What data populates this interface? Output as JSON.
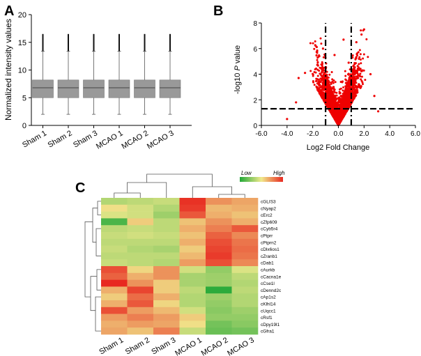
{
  "panels": {
    "a": "A",
    "b": "B",
    "c": "C"
  },
  "chart_data": [
    {
      "panel": "A",
      "type": "box",
      "ylabel": "Normalized intensity values",
      "ylim": [
        0,
        20
      ],
      "yticks": [
        "0",
        "5",
        "10",
        "15",
        "20"
      ],
      "categories": [
        "Sham 1",
        "Sham 2",
        "Sham 3",
        "MCAO 1",
        "MCAO 2",
        "MCAO 3"
      ],
      "boxes": [
        {
          "min": 2.0,
          "q1": 5.0,
          "median": 6.8,
          "q3": 8.2,
          "max": 13.4,
          "outlier_max": 16.5
        },
        {
          "min": 2.0,
          "q1": 5.0,
          "median": 6.8,
          "q3": 8.2,
          "max": 13.4,
          "outlier_max": 16.5
        },
        {
          "min": 2.0,
          "q1": 5.0,
          "median": 6.8,
          "q3": 8.2,
          "max": 13.4,
          "outlier_max": 16.5
        },
        {
          "min": 2.0,
          "q1": 5.0,
          "median": 6.8,
          "q3": 8.2,
          "max": 13.4,
          "outlier_max": 16.5
        },
        {
          "min": 2.0,
          "q1": 5.0,
          "median": 6.8,
          "q3": 8.2,
          "max": 13.4,
          "outlier_max": 16.5
        },
        {
          "min": 2.0,
          "q1": 5.0,
          "median": 6.8,
          "q3": 8.2,
          "max": 13.4,
          "outlier_max": 16.5
        }
      ],
      "box_color": "#999999"
    },
    {
      "panel": "B",
      "type": "scatter",
      "xlabel": "Log2 Fold Change",
      "ylabel_pre": "-log10 ",
      "ylabel_italic": "P",
      "ylabel_post": " value",
      "xlim": [
        -6,
        6
      ],
      "ylim": [
        0,
        8
      ],
      "xticks": [
        "-6.0",
        "-4.0",
        "-2.0",
        "0.0",
        "2.0",
        "4.0",
        "6.0"
      ],
      "yticks": [
        "0",
        "2",
        "4",
        "6",
        "8"
      ],
      "thresholds": {
        "fold_change": [
          -1,
          1
        ],
        "pvalue": 1.3
      },
      "point_color": "#ee0000",
      "notable_points": [
        {
          "x": 2.0,
          "y": 7.5
        },
        {
          "x": 1.8,
          "y": 7.1
        },
        {
          "x": 1.4,
          "y": 6.5
        },
        {
          "x": -1.2,
          "y": 6.0
        },
        {
          "x": 0.4,
          "y": 6.7
        },
        {
          "x": -0.3,
          "y": 5.5
        },
        {
          "x": 1.1,
          "y": 5.3
        },
        {
          "x": -1.6,
          "y": 4.7
        },
        {
          "x": 0.8,
          "y": 4.9
        },
        {
          "x": -2.6,
          "y": 4.1
        },
        {
          "x": -3.1,
          "y": 3.7
        },
        {
          "x": 2.5,
          "y": 4.0
        },
        {
          "x": -0.9,
          "y": 3.8
        },
        {
          "x": 0.2,
          "y": 3.4
        },
        {
          "x": 3.1,
          "y": 1.1
        },
        {
          "x": -4.0,
          "y": 0.5
        },
        {
          "x": -3.3,
          "y": 1.8
        },
        {
          "x": 2.8,
          "y": 2.3
        }
      ]
    },
    {
      "panel": "C",
      "type": "heatmap",
      "columns": [
        "Sham 1",
        "Sham 2",
        "Sham 3",
        "MCAO 1",
        "MCAO 2",
        "MCAO 3"
      ],
      "rows": [
        "cGLIS3",
        "cNyap2",
        "cErc2",
        "cZfp609",
        "cCyb5r4",
        "cPtprr",
        "cPtprn2",
        "cDlx6os1",
        "cZranb1",
        "cDab1",
        "cAurkb",
        "cCacna1e",
        "cCse1l",
        "cDennd2c",
        "cAp1s2",
        "cKlhl14",
        "cUqcc1",
        "cRsf1",
        "cDpy19l1",
        "cGfra1"
      ],
      "values": [
        [
          -0.6,
          -0.5,
          -0.4,
          1.9,
          0.9,
          0.7
        ],
        [
          0.1,
          -0.3,
          -0.6,
          1.8,
          0.5,
          0.6
        ],
        [
          -0.2,
          -0.3,
          -0.8,
          1.5,
          0.6,
          0.4
        ],
        [
          -1.6,
          0.3,
          -0.5,
          0.4,
          0.9,
          0.6
        ],
        [
          -0.5,
          -0.4,
          -0.5,
          0.6,
          1.1,
          1.5
        ],
        [
          -0.4,
          -0.3,
          -0.4,
          0.4,
          1.4,
          1.0
        ],
        [
          -0.5,
          -0.5,
          -0.5,
          0.6,
          1.6,
          1.2
        ],
        [
          -0.4,
          -0.6,
          -0.7,
          0.3,
          1.7,
          1.3
        ],
        [
          -0.5,
          -0.5,
          -0.5,
          0.5,
          1.8,
          1.2
        ],
        [
          -0.4,
          -0.5,
          -0.6,
          0.8,
          1.6,
          1.0
        ],
        [
          1.6,
          0.2,
          0.9,
          -0.3,
          -0.9,
          -0.2
        ],
        [
          1.4,
          0.6,
          0.9,
          -0.7,
          -0.8,
          -0.5
        ],
        [
          2.0,
          0.9,
          0.3,
          -0.7,
          -0.8,
          -0.6
        ],
        [
          0.6,
          1.7,
          0.3,
          -0.5,
          -1.9,
          -0.5
        ],
        [
          0.3,
          1.3,
          0.6,
          -0.6,
          -0.8,
          -0.6
        ],
        [
          0.6,
          1.5,
          0.2,
          -0.6,
          -0.9,
          -0.6
        ],
        [
          1.6,
          0.8,
          0.5,
          -0.3,
          -1.0,
          -0.8
        ],
        [
          0.8,
          1.1,
          0.8,
          0.3,
          -0.9,
          -0.9
        ],
        [
          0.6,
          0.8,
          0.7,
          0.1,
          -1.2,
          -1.0
        ],
        [
          0.7,
          0.4,
          1.1,
          -0.4,
          -1.3,
          -1.2
        ]
      ],
      "legend": {
        "low_label": "Low",
        "high_label": "High",
        "low_color": "#22a838",
        "mid_color": "#f0e98c",
        "high_color": "#e82820"
      }
    }
  ]
}
